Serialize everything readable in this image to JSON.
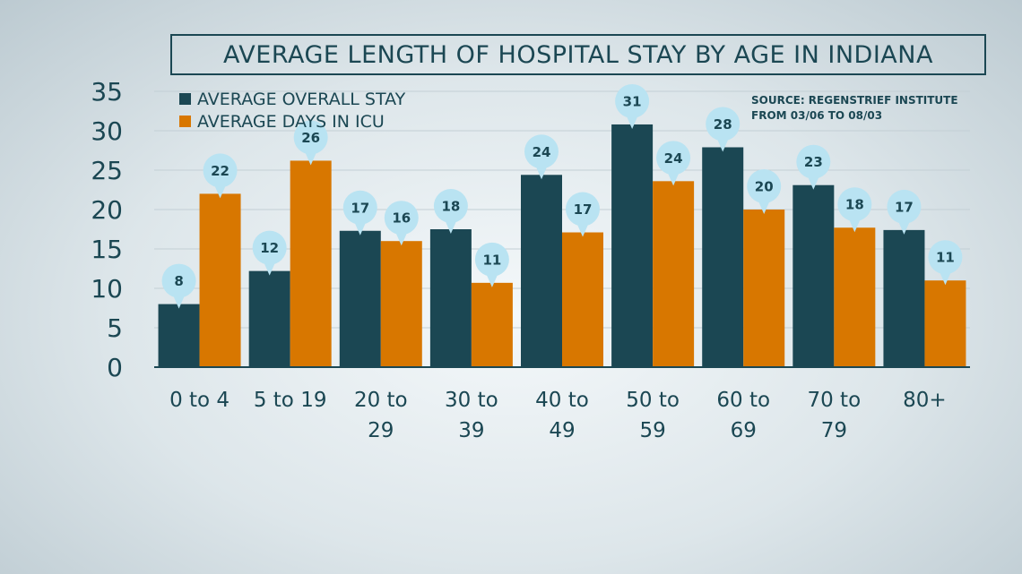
{
  "chart_data": {
    "type": "bar",
    "title": "AVERAGE LENGTH OF HOSPITAL STAY BY AGE IN INDIANA",
    "source_lines": [
      "SOURCE: REGENSTRIEF INSTITUTE",
      "FROM 03/06 TO 08/03"
    ],
    "categories": [
      [
        "0 to 4"
      ],
      [
        "5 to 19"
      ],
      [
        "20 to",
        "29"
      ],
      [
        "30 to",
        "39"
      ],
      [
        "40 to",
        "49"
      ],
      [
        "50 to",
        "59"
      ],
      [
        "60 to",
        "69"
      ],
      [
        "70 to",
        "79"
      ],
      [
        "80+"
      ]
    ],
    "series": [
      {
        "name": "AVERAGE OVERALL STAY",
        "color": "#1b4753",
        "values": [
          8,
          12.2,
          17.3,
          17.5,
          24.4,
          30.8,
          27.9,
          23.1,
          17.4
        ],
        "labels": [
          "8",
          "12",
          "17",
          "18",
          "24",
          "31",
          "28",
          "23",
          "17"
        ]
      },
      {
        "name": "AVERAGE DAYS IN ICU",
        "color": "#d87700",
        "values": [
          22,
          26.2,
          16,
          10.7,
          17.1,
          23.6,
          20,
          17.7,
          11
        ],
        "labels": [
          "22",
          "26",
          "16",
          "11",
          "17",
          "24",
          "20",
          "18",
          "11"
        ]
      }
    ],
    "yticks": [
      "0",
      "5",
      "10",
      "15",
      "20",
      "25",
      "30",
      "35"
    ],
    "ylim": [
      0,
      35
    ],
    "grid": true,
    "legend_position": "top-left",
    "callout_color": "#b9e3f2"
  }
}
